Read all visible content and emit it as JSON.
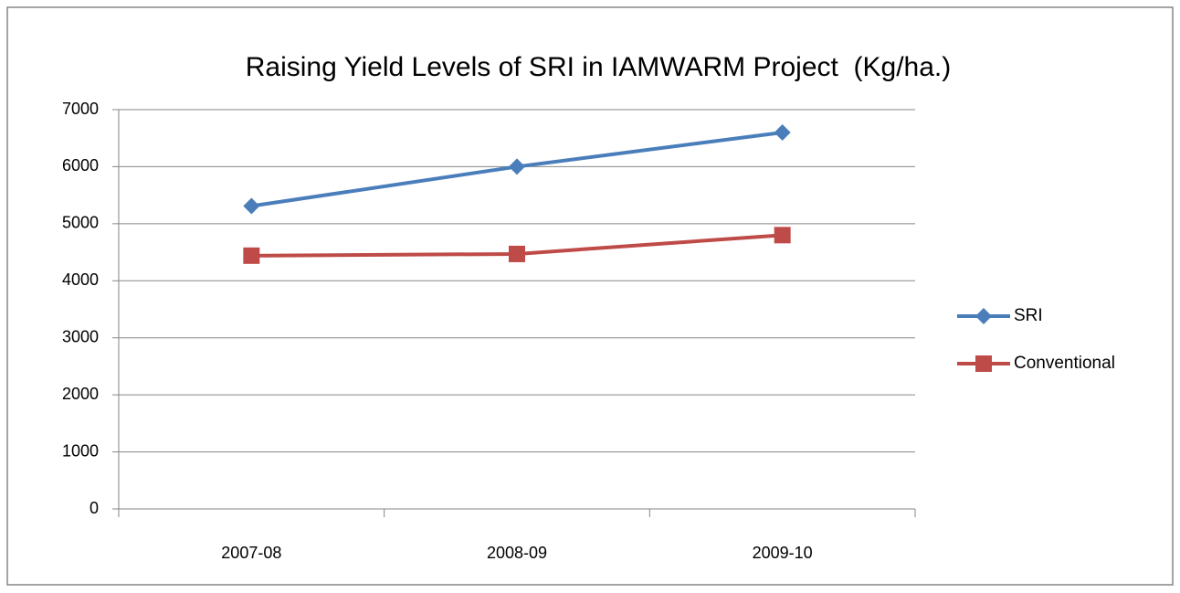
{
  "chart_data": {
    "type": "line",
    "title": "Raising Yield Levels of SRI in IAMWARM Project  (Kg/ha.)",
    "categories": [
      "2007-08",
      "2008-09",
      "2009-10"
    ],
    "series": [
      {
        "name": "SRI",
        "color": "#4a7ebb",
        "marker": "diamond",
        "values": [
          5310,
          6000,
          6600
        ]
      },
      {
        "name": "Conventional",
        "color": "#be4b48",
        "marker": "square",
        "values": [
          4440,
          4470,
          4800
        ]
      }
    ],
    "ylim": [
      0,
      7000
    ],
    "yticks": [
      0,
      1000,
      2000,
      3000,
      4000,
      5000,
      6000,
      7000
    ],
    "grid": true,
    "legend": "right"
  }
}
